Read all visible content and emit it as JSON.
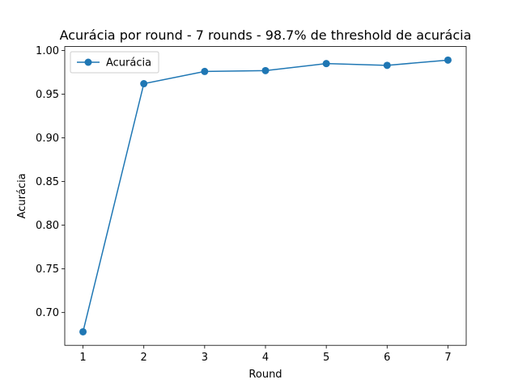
{
  "chart_data": {
    "type": "line",
    "title": "Acurácia por round - 7 rounds - 98.7% de threshold de acurácia",
    "xlabel": "Round",
    "ylabel": "Acurácia",
    "x": [
      1,
      2,
      3,
      4,
      5,
      6,
      7
    ],
    "xticks": [
      "1",
      "2",
      "3",
      "4",
      "5",
      "6",
      "7"
    ],
    "yticks": [
      "0.70",
      "0.75",
      "0.80",
      "0.85",
      "0.90",
      "0.95",
      "1.00"
    ],
    "xlim": [
      0.7,
      7.3
    ],
    "ylim": [
      0.6625,
      1.0045
    ],
    "series": [
      {
        "name": "Acurácia",
        "color": "#1f77b4",
        "marker": "circle",
        "values": [
          0.678,
          0.962,
          0.976,
          0.977,
          0.985,
          0.983,
          0.989
        ]
      }
    ],
    "legend": "top-left",
    "grid": false
  }
}
